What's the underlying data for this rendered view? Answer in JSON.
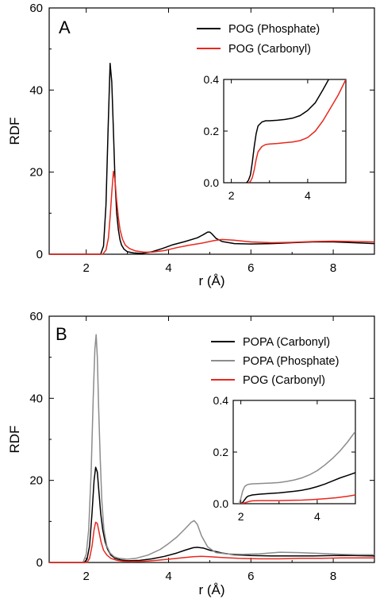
{
  "chart_data": [
    {
      "type": "line",
      "panel_label": "A",
      "xlabel": "r (Å)",
      "ylabel": "RDF",
      "xlim": [
        1.1,
        9.0
      ],
      "ylim": [
        0,
        60
      ],
      "xticks": [
        2,
        4,
        6,
        8
      ],
      "yticks": [
        0,
        20,
        40,
        60
      ],
      "legend_position": "top-right",
      "series": [
        {
          "name": "POG (Phosphate)",
          "color": "#000000",
          "x": [
            1.1,
            2.35,
            2.42,
            2.48,
            2.53,
            2.58,
            2.62,
            2.66,
            2.7,
            2.74,
            2.78,
            2.82,
            2.86,
            2.92,
            3.0,
            3.15,
            3.35,
            3.6,
            3.85,
            4.1,
            4.4,
            4.7,
            4.85,
            4.95,
            5.0,
            5.05,
            5.15,
            5.3,
            5.6,
            6.0,
            6.5,
            7.0,
            7.5,
            8.0,
            8.5,
            9.0
          ],
          "y": [
            0,
            0,
            2,
            12,
            30,
            46.5,
            42,
            30,
            18,
            10,
            6,
            3.5,
            2.2,
            1.2,
            0.6,
            0.3,
            0.2,
            0.6,
            1.4,
            2.3,
            3.1,
            4.0,
            4.8,
            5.4,
            5.4,
            5.0,
            3.9,
            3.1,
            2.6,
            2.5,
            2.6,
            2.8,
            3.0,
            3.0,
            2.8,
            2.6
          ]
        },
        {
          "name": "POG (Carbonyl)",
          "color": "#e8281e",
          "x": [
            1.1,
            2.4,
            2.48,
            2.54,
            2.58,
            2.62,
            2.66,
            2.7,
            2.74,
            2.78,
            2.82,
            2.88,
            2.95,
            3.05,
            3.2,
            3.4,
            3.6,
            3.9,
            4.2,
            4.5,
            4.8,
            5.1,
            5.3,
            5.6,
            6.0,
            6.5,
            7.0,
            7.5,
            8.0,
            8.5,
            9.0
          ],
          "y": [
            0,
            0,
            1,
            4,
            9,
            15,
            20.2,
            18,
            13,
            9,
            6,
            3.7,
            2.2,
            1.4,
            0.8,
            0.5,
            0.5,
            0.9,
            1.6,
            2.2,
            2.7,
            3.3,
            3.6,
            3.4,
            3.0,
            2.8,
            2.9,
            3.1,
            3.2,
            3.1,
            3.0
          ]
        }
      ],
      "inset": {
        "xlim": [
          1.8,
          5.0
        ],
        "ylim": [
          0,
          0.4
        ],
        "xticks": [
          2,
          4
        ],
        "yticks": [
          0.0,
          0.2,
          0.4
        ],
        "ytick_labels": [
          "0.0",
          "0.2",
          "0.4"
        ],
        "series": [
          {
            "name": "POG (Phosphate)",
            "color": "#000000",
            "x": [
              2.4,
              2.45,
              2.5,
              2.55,
              2.6,
              2.65,
              2.7,
              2.8,
              2.9,
              3.0,
              3.2,
              3.4,
              3.6,
              3.8,
              4.0,
              4.2,
              4.4,
              4.55
            ],
            "y": [
              0.0,
              0.01,
              0.03,
              0.08,
              0.14,
              0.19,
              0.22,
              0.235,
              0.24,
              0.24,
              0.242,
              0.245,
              0.25,
              0.26,
              0.28,
              0.31,
              0.36,
              0.4
            ]
          },
          {
            "name": "POG (Carbonyl)",
            "color": "#e8281e",
            "x": [
              2.45,
              2.5,
              2.55,
              2.6,
              2.65,
              2.7,
              2.8,
              2.9,
              3.0,
              3.2,
              3.4,
              3.6,
              3.8,
              4.0,
              4.2,
              4.4,
              4.6,
              4.8,
              5.0
            ],
            "y": [
              0.0,
              0.005,
              0.02,
              0.05,
              0.09,
              0.12,
              0.14,
              0.148,
              0.15,
              0.152,
              0.155,
              0.158,
              0.163,
              0.175,
              0.2,
              0.24,
              0.29,
              0.34,
              0.4
            ]
          }
        ]
      }
    },
    {
      "type": "line",
      "panel_label": "B",
      "xlabel": "r (Å)",
      "ylabel": "RDF",
      "xlim": [
        1.1,
        9.0
      ],
      "ylim": [
        0,
        60
      ],
      "xticks": [
        2,
        4,
        6,
        8
      ],
      "yticks": [
        0,
        20,
        40,
        60
      ],
      "legend_position": "top-right",
      "series": [
        {
          "name": "POPA (Carbonyl)",
          "color": "#000000",
          "x": [
            1.1,
            1.95,
            2.02,
            2.08,
            2.14,
            2.19,
            2.23,
            2.27,
            2.31,
            2.35,
            2.4,
            2.46,
            2.52,
            2.6,
            2.7,
            2.85,
            3.0,
            3.3,
            3.6,
            3.9,
            4.2,
            4.4,
            4.6,
            4.7,
            4.85,
            5.0,
            5.3,
            5.6,
            6.0,
            6.5,
            7.0,
            7.5,
            8.0,
            8.5,
            9.0
          ],
          "y": [
            0,
            0,
            0.8,
            4,
            12,
            20,
            23.2,
            22,
            17,
            12,
            8,
            5,
            3.2,
            1.8,
            1.0,
            0.6,
            0.4,
            0.5,
            0.9,
            1.5,
            2.3,
            3.0,
            3.6,
            3.7,
            3.5,
            3.0,
            2.3,
            1.9,
            1.7,
            1.6,
            1.6,
            1.6,
            1.7,
            1.7,
            1.6
          ]
        },
        {
          "name": "POPA (Phosphate)",
          "color": "#8c8c8c",
          "x": [
            1.1,
            1.92,
            2.0,
            2.06,
            2.12,
            2.17,
            2.21,
            2.24,
            2.27,
            2.3,
            2.34,
            2.38,
            2.43,
            2.5,
            2.58,
            2.68,
            2.8,
            3.0,
            3.2,
            3.5,
            3.8,
            4.0,
            4.2,
            4.4,
            4.55,
            4.62,
            4.7,
            4.8,
            4.95,
            5.15,
            5.4,
            5.8,
            6.2,
            6.7,
            7.2,
            7.7,
            8.2,
            8.6,
            9.0
          ],
          "y": [
            0,
            0,
            2,
            8,
            22,
            40,
            52,
            55.5,
            50,
            38,
            25,
            15,
            8,
            4,
            2.3,
            1.4,
            1.0,
            0.8,
            1.0,
            1.8,
            3.2,
            4.6,
            6.2,
            8.2,
            9.8,
            10.2,
            9.3,
            6.5,
            3.8,
            2.4,
            2.1,
            2.0,
            2.1,
            2.5,
            2.4,
            2.2,
            2.0,
            1.9,
            1.9
          ]
        },
        {
          "name": "POG (Carbonyl)",
          "color": "#e8281e",
          "x": [
            1.1,
            2.02,
            2.08,
            2.14,
            2.19,
            2.23,
            2.27,
            2.31,
            2.36,
            2.42,
            2.5,
            2.6,
            2.75,
            2.9,
            3.1,
            3.4,
            3.7,
            4.0,
            4.3,
            4.6,
            4.8,
            5.0,
            5.3,
            5.7,
            6.2,
            6.7,
            7.2,
            7.7,
            8.2,
            8.6,
            9.0
          ],
          "y": [
            0,
            0,
            1,
            4,
            8,
            9.8,
            9.5,
            7.5,
            5,
            3,
            1.8,
            1.0,
            0.5,
            0.3,
            0.2,
            0.3,
            0.5,
            0.8,
            1.1,
            1.4,
            1.5,
            1.4,
            1.2,
            1.0,
            0.9,
            0.9,
            1.0,
            1.0,
            1.1,
            1.1,
            1.1
          ]
        }
      ],
      "inset": {
        "xlim": [
          1.8,
          5.0
        ],
        "ylim": [
          0,
          0.4
        ],
        "xticks": [
          2,
          4
        ],
        "yticks": [
          0.0,
          0.2,
          0.4
        ],
        "ytick_labels": [
          "0.0",
          "0.2",
          "0.4"
        ],
        "series": [
          {
            "name": "POPA (Carbonyl)",
            "color": "#000000",
            "x": [
              2.0,
              2.05,
              2.1,
              2.15,
              2.2,
              2.3,
              2.5,
              2.8,
              3.0,
              3.2,
              3.4,
              3.6,
              3.8,
              4.0,
              4.2,
              4.4,
              4.6,
              4.8,
              5.0
            ],
            "y": [
              0.0,
              0.005,
              0.015,
              0.025,
              0.03,
              0.034,
              0.037,
              0.04,
              0.042,
              0.045,
              0.048,
              0.052,
              0.058,
              0.066,
              0.076,
              0.088,
              0.1,
              0.11,
              0.12
            ]
          },
          {
            "name": "POPA (Phosphate)",
            "color": "#8c8c8c",
            "x": [
              1.95,
              2.0,
              2.05,
              2.1,
              2.15,
              2.2,
              2.3,
              2.5,
              2.8,
              3.0,
              3.2,
              3.4,
              3.6,
              3.8,
              4.0,
              4.2,
              4.4,
              4.6,
              4.8,
              4.9,
              5.0
            ],
            "y": [
              0.0,
              0.02,
              0.05,
              0.066,
              0.072,
              0.075,
              0.077,
              0.078,
              0.08,
              0.082,
              0.086,
              0.092,
              0.1,
              0.112,
              0.128,
              0.15,
              0.175,
              0.205,
              0.24,
              0.26,
              0.28
            ]
          },
          {
            "name": "POG (Carbonyl)",
            "color": "#e8281e",
            "x": [
              2.0,
              2.1,
              2.2,
              2.3,
              2.5,
              2.8,
              3.0,
              3.3,
              3.6,
              3.9,
              4.2,
              4.5,
              4.8,
              5.0
            ],
            "y": [
              0.0,
              0.003,
              0.008,
              0.011,
              0.012,
              0.012,
              0.012,
              0.013,
              0.014,
              0.016,
              0.019,
              0.023,
              0.029,
              0.034
            ]
          }
        ]
      }
    }
  ]
}
